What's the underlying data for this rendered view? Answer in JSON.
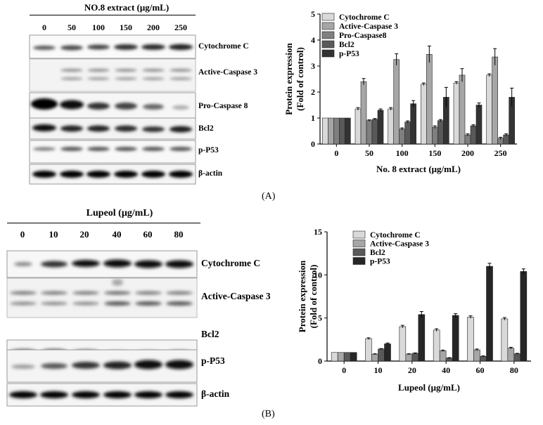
{
  "panel_a": {
    "tag": "(A)",
    "blot_header": "NO.8 extract (μg/mL)",
    "lanes": [
      "0",
      "50",
      "100",
      "150",
      "200",
      "250"
    ],
    "proteins": [
      "Cytochrome C",
      "Active-Caspase 3",
      "Pro-Caspase 8",
      "Bcl2",
      "p-P53",
      "β-actin"
    ]
  },
  "panel_b": {
    "tag": "(B)",
    "blot_header": "Lupeol (μg/mL)",
    "lanes": [
      "0",
      "10",
      "20",
      "40",
      "60",
      "80"
    ],
    "proteins": [
      "Cytochrome C",
      "Active-Caspase 3",
      "Bcl2",
      "p-P53",
      "β-actin"
    ]
  },
  "chart_data": [
    {
      "type": "bar",
      "title": "",
      "xlabel": "No. 8 extract (μg/mL)",
      "ylabel": "Protein expression (Fold of control)",
      "ylim": [
        0,
        5
      ],
      "yticks": [
        "0",
        "1",
        "2",
        "3",
        "4",
        "5"
      ],
      "categories": [
        "0",
        "50",
        "100",
        "150",
        "200",
        "250"
      ],
      "legend_position": "top-right",
      "series": [
        {
          "name": "Cytochrome C",
          "color": "#d9d9d9",
          "values": [
            1,
            1.35,
            1.35,
            2.3,
            2.35,
            2.65
          ],
          "errors": [
            0,
            0.05,
            0.05,
            0.05,
            0.05,
            0.05
          ]
        },
        {
          "name": "Active-Caspase 3",
          "color": "#a6a6a6",
          "values": [
            1,
            2.4,
            3.25,
            3.45,
            2.65,
            3.35
          ],
          "errors": [
            0,
            0.12,
            0.22,
            0.32,
            0.25,
            0.32
          ]
        },
        {
          "name": "Pro-Caspase8",
          "color": "#7f7f7f",
          "values": [
            1,
            0.9,
            0.58,
            0.65,
            0.35,
            0.22
          ],
          "errors": [
            0,
            0.03,
            0.04,
            0.05,
            0.04,
            0.04
          ]
        },
        {
          "name": "Bcl2",
          "color": "#595959",
          "values": [
            1,
            0.95,
            0.85,
            0.9,
            0.7,
            0.35
          ],
          "errors": [
            0,
            0.03,
            0.04,
            0.04,
            0.04,
            0.04
          ]
        },
        {
          "name": "p-P53",
          "color": "#333333",
          "values": [
            1,
            1.3,
            1.55,
            1.8,
            1.5,
            1.8
          ],
          "errors": [
            0,
            0.05,
            0.12,
            0.38,
            0.08,
            0.35
          ]
        }
      ]
    },
    {
      "type": "bar",
      "title": "",
      "xlabel": "Lupeol (μg/mL)",
      "ylabel": "Protein expression (Fold of control)",
      "ylim": [
        0,
        15
      ],
      "yticks": [
        "0",
        "5",
        "10",
        "15"
      ],
      "categories": [
        "0",
        "10",
        "20",
        "40",
        "60",
        "80"
      ],
      "legend_position": "top-right",
      "series": [
        {
          "name": "Cytochrome C",
          "color": "#d9d9d9",
          "values": [
            1,
            2.6,
            4.0,
            3.6,
            5.1,
            4.9
          ],
          "errors": [
            0,
            0.1,
            0.15,
            0.15,
            0.15,
            0.15
          ]
        },
        {
          "name": "Active-Caspase 3",
          "color": "#a6a6a6",
          "values": [
            1,
            0.8,
            0.8,
            1.2,
            1.3,
            1.5
          ],
          "errors": [
            0,
            0.05,
            0.05,
            0.08,
            0.1,
            0.1
          ]
        },
        {
          "name": "Bcl2",
          "color": "#595959",
          "values": [
            1,
            1.4,
            0.9,
            0.35,
            0.55,
            0.85
          ],
          "errors": [
            0,
            0.05,
            0.05,
            0.05,
            0.05,
            0.05
          ]
        },
        {
          "name": "p-P53",
          "color": "#262626",
          "values": [
            1,
            2.0,
            5.4,
            5.3,
            11.0,
            10.4
          ],
          "errors": [
            0,
            0.1,
            0.35,
            0.2,
            0.35,
            0.3
          ]
        }
      ]
    }
  ]
}
